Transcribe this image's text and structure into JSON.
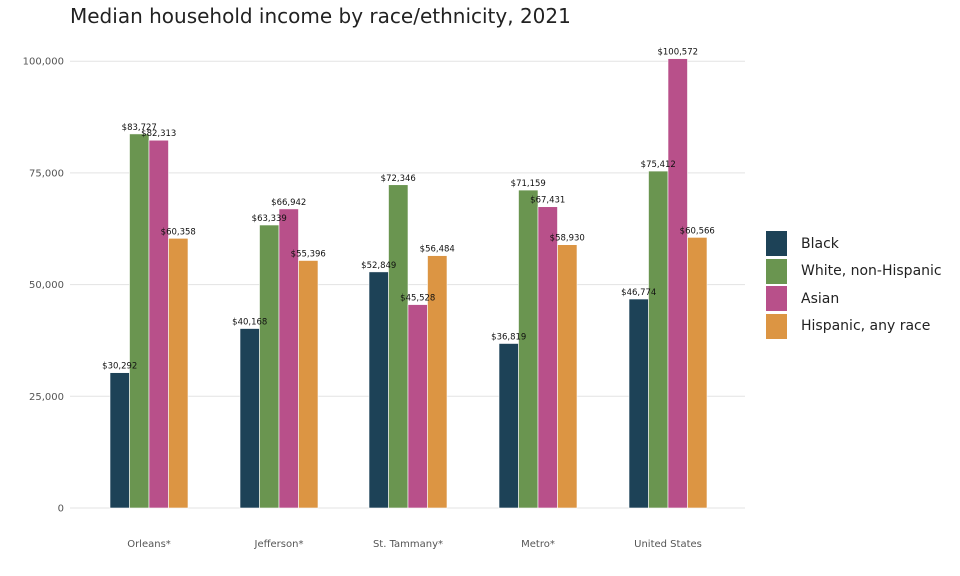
{
  "chart_data": {
    "type": "bar",
    "title": "Median household income by race/ethnicity, 2021",
    "xlabel": "",
    "ylabel": "",
    "ylim": [
      0,
      100572
    ],
    "yticks": [
      0,
      25000,
      50000,
      75000,
      100000
    ],
    "ytick_labels": [
      "0",
      "25,000",
      "50,000",
      "75,000",
      "100,000"
    ],
    "grid": true,
    "legend_position": "right",
    "categories": [
      "Orleans*",
      "Jefferson*",
      "St. Tammany*",
      "Metro*",
      "United States"
    ],
    "series": [
      {
        "name": "Black",
        "color": "#1d4257",
        "values": [
          30292,
          40168,
          52849,
          36819,
          46774
        ],
        "labels": [
          "$30,292",
          "$40,168",
          "$52,849",
          "$36,819",
          "$46,774"
        ]
      },
      {
        "name": "White, non-Hispanic",
        "color": "#6a9550",
        "values": [
          83727,
          63339,
          72346,
          71159,
          75412
        ],
        "labels": [
          "$83,727",
          "$63,339",
          "$72,346",
          "$71,159",
          "$75,412"
        ]
      },
      {
        "name": "Asian",
        "color": "#b8508a",
        "values": [
          82313,
          66942,
          45528,
          67431,
          100572
        ],
        "labels": [
          "$82,313",
          "$66,942",
          "$45,528",
          "$67,431",
          "$100,572"
        ]
      },
      {
        "name": "Hispanic, any race",
        "color": "#dc9543",
        "values": [
          60358,
          55396,
          56484,
          58930,
          60566
        ],
        "labels": [
          "$60,358",
          "$55,396",
          "$56,484",
          "$58,930",
          "$60,566"
        ]
      }
    ]
  }
}
